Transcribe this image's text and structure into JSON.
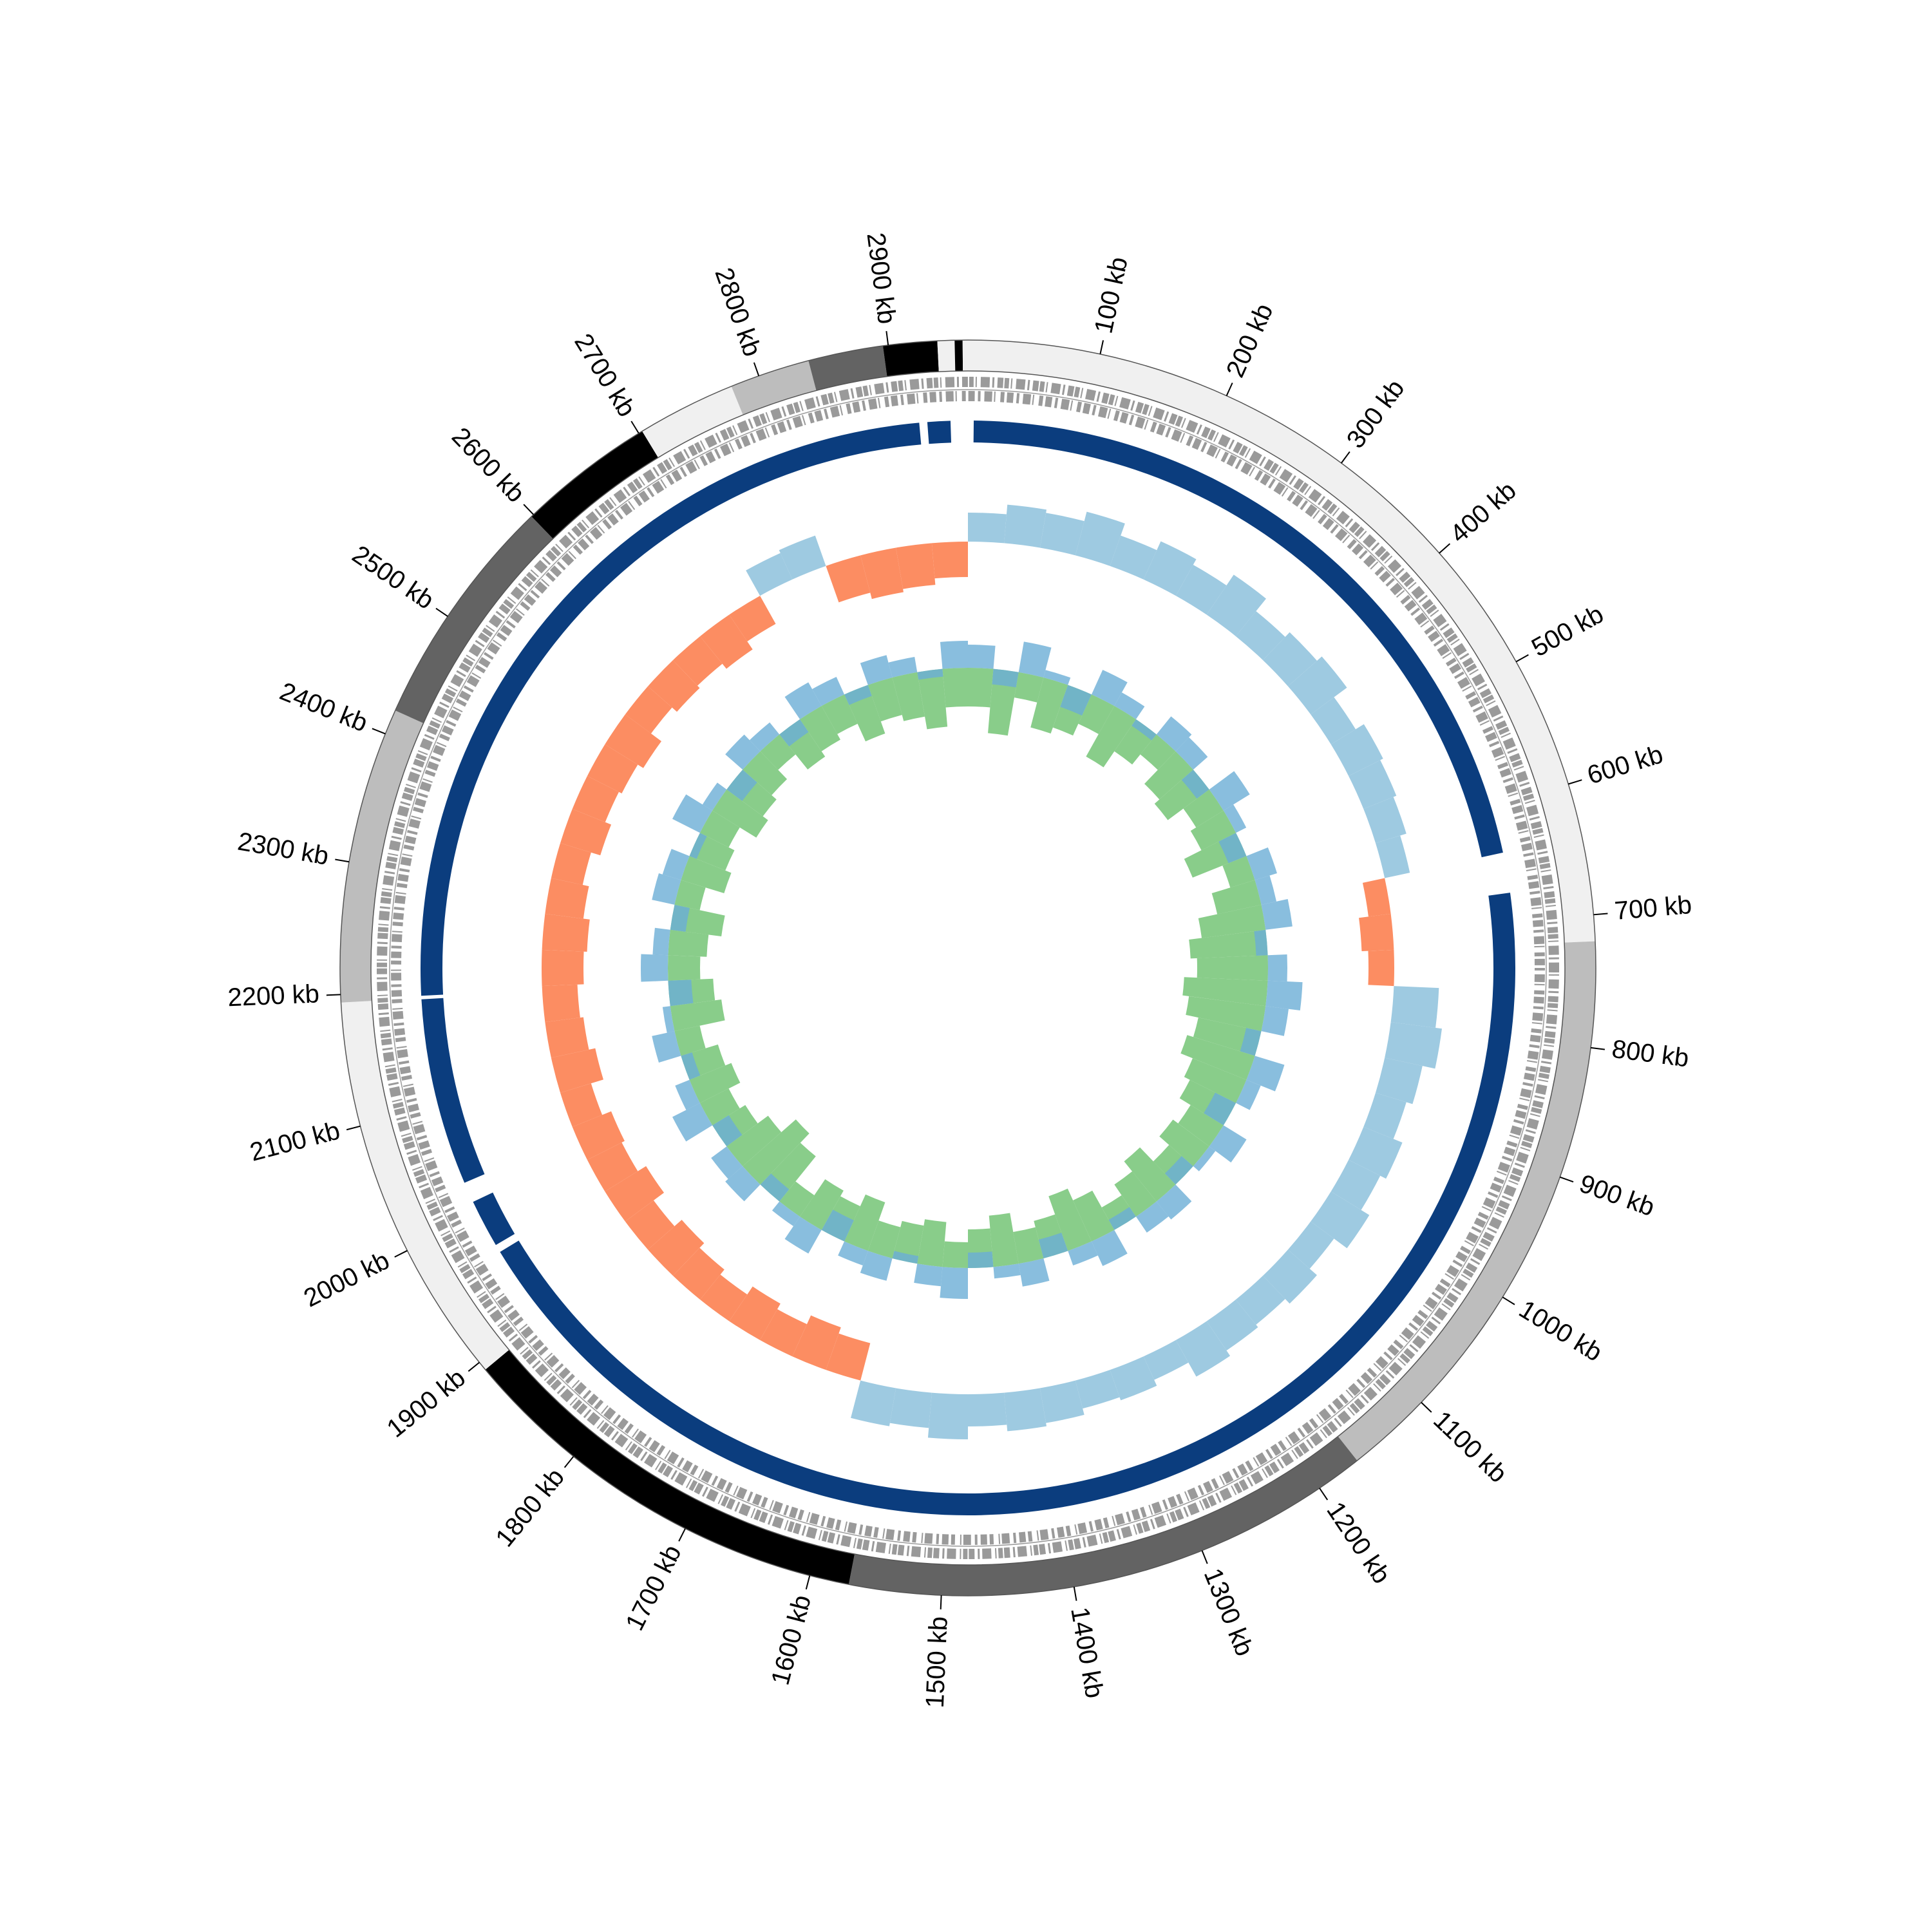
{
  "chart_data": {
    "type": "circular",
    "xlim": [
      0,
      2960
    ],
    "xticks": [
      {
        "value": 100,
        "label": "100 kb"
      },
      {
        "value": 200,
        "label": "200 kb"
      },
      {
        "value": 300,
        "label": "300 kb"
      },
      {
        "value": 400,
        "label": "400 kb"
      },
      {
        "value": 500,
        "label": "500 kb"
      },
      {
        "value": 600,
        "label": "600 kb"
      },
      {
        "value": 700,
        "label": "700 kb"
      },
      {
        "value": 800,
        "label": "800 kb"
      },
      {
        "value": 900,
        "label": "900 kb"
      },
      {
        "value": 1000,
        "label": "1000 kb"
      },
      {
        "value": 1100,
        "label": "1100 kb"
      },
      {
        "value": 1200,
        "label": "1200 kb"
      },
      {
        "value": 1300,
        "label": "1300 kb"
      },
      {
        "value": 1400,
        "label": "1400 kb"
      },
      {
        "value": 1500,
        "label": "1500 kb"
      },
      {
        "value": 1600,
        "label": "1600 kb"
      },
      {
        "value": 1700,
        "label": "1700 kb"
      },
      {
        "value": 1800,
        "label": "1800 kb"
      },
      {
        "value": 1900,
        "label": "1900 kb"
      },
      {
        "value": 2000,
        "label": "2000 kb"
      },
      {
        "value": 2100,
        "label": "2100 kb"
      },
      {
        "value": 2200,
        "label": "2200 kb"
      },
      {
        "value": 2300,
        "label": "2300 kb"
      },
      {
        "value": 2400,
        "label": "2400 kb"
      },
      {
        "value": 2500,
        "label": "2500 kb"
      },
      {
        "value": 2600,
        "label": "2600 kb"
      },
      {
        "value": 2700,
        "label": "2700 kb"
      },
      {
        "value": 2800,
        "label": "2800 kb"
      },
      {
        "value": 2900,
        "label": "2900 kb"
      }
    ],
    "segments": [
      {
        "start": 0,
        "end": 720,
        "color": "#f0f0f0"
      },
      {
        "start": 720,
        "end": 1165,
        "color": "#bdbdbd"
      },
      {
        "start": 1165,
        "end": 1570,
        "color": "#636363"
      },
      {
        "start": 1570,
        "end": 1893,
        "color": "#000000"
      },
      {
        "start": 1893,
        "end": 2194,
        "color": "#f0f0f0"
      },
      {
        "start": 2194,
        "end": 2419,
        "color": "#bdbdbd"
      },
      {
        "start": 2419,
        "end": 2598,
        "color": "#636363"
      },
      {
        "start": 2598,
        "end": 2703,
        "color": "#000000"
      },
      {
        "start": 2703,
        "end": 2778,
        "color": "#f0f0f0"
      },
      {
        "start": 2778,
        "end": 2839,
        "color": "#bdbdbd"
      },
      {
        "start": 2839,
        "end": 2896,
        "color": "#636363"
      },
      {
        "start": 2896,
        "end": 2937,
        "color": "#000000"
      },
      {
        "start": 2937,
        "end": 2950,
        "color": "#f0f0f0"
      },
      {
        "start": 2950,
        "end": 2956,
        "color": "#000000"
      },
      {
        "start": 2956,
        "end": 2960,
        "color": "#f0f0f0"
      }
    ],
    "hits": {
      "color": "#0b3d7e",
      "ranges": [
        {
          "start": 5,
          "end": 640
        },
        {
          "start": 675,
          "end": 1963
        },
        {
          "start": 1970,
          "end": 2012
        },
        {
          "start": 2030,
          "end": 2193
        },
        {
          "start": 2196,
          "end": 2918
        },
        {
          "start": 2925,
          "end": 2945
        }
      ]
    },
    "x": [
      0,
      40,
      80,
      120,
      160,
      200,
      240,
      280,
      320,
      360,
      400,
      440,
      480,
      520,
      560,
      600,
      640,
      680,
      720,
      760,
      800,
      840,
      880,
      920,
      960,
      1000,
      1040,
      1080,
      1120,
      1160,
      1200,
      1240,
      1280,
      1320,
      1360,
      1400,
      1440,
      1480,
      1520,
      1560,
      1600,
      1640,
      1680,
      1720,
      1760,
      1800,
      1840,
      1880,
      1920,
      1960,
      2000,
      2040,
      2080,
      2120,
      2160,
      2200,
      2240,
      2280,
      2320,
      2360,
      2400,
      2440,
      2480,
      2520,
      2560,
      2600,
      2640,
      2680,
      2720,
      2760,
      2800,
      2840,
      2880,
      2920
    ],
    "skew": {
      "ylim": [
        -1,
        1
      ],
      "positive_color": "#9ecae1",
      "negative_color": "#fc8d62",
      "values": [
        0.45,
        0.6,
        0.55,
        0.7,
        0.5,
        0.65,
        0.55,
        0.75,
        0.5,
        0.6,
        0.7,
        0.45,
        0.6,
        0.55,
        0.5,
        0.4,
        -0.35,
        -0.5,
        -0.4,
        0.7,
        0.8,
        0.6,
        0.5,
        0.65,
        0.55,
        0.7,
        0.45,
        0.6,
        0.5,
        0.55,
        0.65,
        0.4,
        0.5,
        0.45,
        0.55,
        0.6,
        0.5,
        0.7,
        0.55,
        0.6,
        -0.6,
        -0.7,
        -0.55,
        -0.65,
        -0.5,
        -0.6,
        -0.7,
        -0.55,
        -0.75,
        -0.6,
        -0.65,
        -0.5,
        -0.7,
        -0.6,
        -0.55,
        -0.65,
        -0.7,
        -0.6,
        -0.5,
        -0.65,
        -0.55,
        -0.6,
        -0.7,
        -0.5,
        -0.6,
        -0.55,
        -0.65,
        -0.5,
        0.45,
        0.5,
        -0.6,
        -0.7,
        -0.65,
        -0.55
      ]
    },
    "gc_content": {
      "ylim": [
        -1,
        1
      ],
      "color": "#6baed6",
      "values": [
        0.3,
        -0.2,
        0.4,
        0.1,
        -0.3,
        0.35,
        0.2,
        -0.1,
        0.3,
        0.25,
        -0.2,
        0.4,
        0.15,
        -0.25,
        0.3,
        0.2,
        0.35,
        -0.15,
        0.25,
        0.45,
        0.3,
        -0.2,
        0.4,
        0.2,
        -0.3,
        0.35,
        0.1,
        -0.2,
        0.3,
        0.25,
        -0.15,
        0.35,
        0.2,
        -0.25,
        0.3,
        0.15,
        -0.2,
        0.4,
        0.25,
        -0.1,
        0.3,
        0.2,
        -0.3,
        0.35,
        0.15,
        -0.2,
        0.3,
        0.25,
        -0.25,
        0.4,
        0.2,
        -0.15,
        0.3,
        0.1,
        -0.3,
        0.35,
        0.2,
        -0.2,
        0.3,
        0.25,
        -0.1,
        0.4,
        0.15,
        -0.25,
        0.3,
        0.2,
        -0.2,
        0.35,
        0.25,
        -0.15,
        0.3,
        0.2,
        -0.1,
        0.35
      ]
    },
    "inner": {
      "ylim": [
        -1,
        1
      ],
      "color": "#74c476",
      "values": [
        -0.3,
        -0.5,
        -0.2,
        -0.4,
        -0.35,
        -0.25,
        -0.45,
        -0.3,
        -0.2,
        -0.35,
        -0.4,
        -0.25,
        -0.3,
        -0.45,
        -0.2,
        -0.35,
        -0.5,
        -0.6,
        -0.55,
        -0.65,
        -0.6,
        -0.5,
        -0.55,
        -0.45,
        -0.4,
        -0.3,
        -0.35,
        -0.25,
        -0.4,
        -0.3,
        -0.2,
        -0.35,
        -0.45,
        -0.3,
        -0.25,
        -0.4,
        -0.3,
        -0.2,
        -0.35,
        -0.3,
        -0.25,
        -0.4,
        -0.3,
        -0.35,
        -0.2,
        -0.45,
        -0.55,
        -0.4,
        -0.3,
        -0.25,
        -0.35,
        -0.3,
        -0.2,
        -0.4,
        -0.35,
        -0.25,
        -0.3,
        -0.4,
        -0.2,
        -0.35,
        -0.3,
        -0.25,
        -0.4,
        -0.35,
        -0.3,
        -0.2,
        -0.35,
        -0.3,
        -0.25,
        -0.4,
        -0.3,
        -0.35,
        -0.45,
        -0.3
      ]
    }
  }
}
